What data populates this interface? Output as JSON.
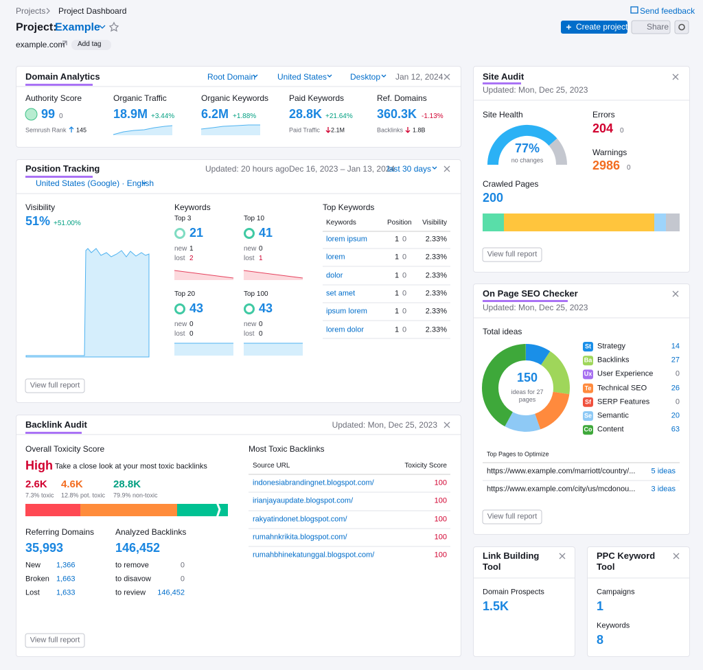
{
  "breadcrumbs": [
    "Projects",
    "Project Dashboard"
  ],
  "send_feedback": "Send feedback",
  "project": {
    "label": "Project:",
    "name": "Example",
    "domain": "example.com",
    "add_tag": "Add tag"
  },
  "buttons": {
    "create": "Create project",
    "share": "Share"
  },
  "domain_analytics": {
    "title": "Domain Analytics",
    "filters": [
      "Root Domain",
      "United States",
      "Desktop"
    ],
    "date": "Jan 12, 2024",
    "metrics": [
      {
        "label": "Authority Score",
        "value": "99",
        "change": "0",
        "sub_label": "Semrush Rank",
        "sub_value": "145"
      },
      {
        "label": "Organic Traffic",
        "value": "18.9M",
        "change": "+3.44%"
      },
      {
        "label": "Organic Keywords",
        "value": "6.2M",
        "change": "+1.88%"
      },
      {
        "label": "Paid Keywords",
        "value": "28.8K",
        "change": "+21.64%",
        "sub_label": "Paid Traffic",
        "sub_value": "2.1M"
      },
      {
        "label": "Ref. Domains",
        "value": "360.3K",
        "change": "-1.13%",
        "sub_label": "Backlinks",
        "sub_value": "1.8B"
      }
    ]
  },
  "position_tracking": {
    "title": "Position Tracking",
    "updated": "Updated: 20 hours ago",
    "range": "Dec 16, 2023 – Jan 13, 2024",
    "period": "last 30 days",
    "location": "United States (Google) · English",
    "visibility": {
      "label": "Visibility",
      "value": "51%",
      "change": "+51.00%"
    },
    "keywords": {
      "label": "Keywords",
      "new_label": "new",
      "lost_label": "lost",
      "groups": [
        {
          "label": "Top 3",
          "value": "21",
          "new": "1",
          "lost": "2"
        },
        {
          "label": "Top 10",
          "value": "41",
          "new": "0",
          "lost": "1"
        },
        {
          "label": "Top 20",
          "value": "43",
          "new": "0",
          "lost": "0"
        },
        {
          "label": "Top 100",
          "value": "43",
          "new": "0",
          "lost": "0"
        }
      ]
    },
    "top_keywords": {
      "title": "Top Keywords",
      "columns": [
        "Keywords",
        "Position",
        "Visibility"
      ],
      "rows": [
        [
          "lorem ipsum",
          "1",
          "0",
          "2.33%"
        ],
        [
          "lorem",
          "1",
          "0",
          "2.33%"
        ],
        [
          "dolor",
          "1",
          "0",
          "2.33%"
        ],
        [
          "set amet",
          "1",
          "0",
          "2.33%"
        ],
        [
          "ipsum lorem",
          "1",
          "0",
          "2.33%"
        ],
        [
          "lorem dolor",
          "1",
          "0",
          "2.33%"
        ]
      ]
    },
    "view_full_report": "View full report"
  },
  "backlink_audit": {
    "title": "Backlink Audit",
    "updated": "Updated: Mon, Dec 25, 2023",
    "toxicity": {
      "label": "Overall Toxicity Score",
      "level": "High",
      "note": "Take a close look at your most toxic backlinks",
      "counts": [
        {
          "value": "2.6K",
          "label": "7.3% toxic"
        },
        {
          "value": "4.6K",
          "label": "12.8% pot. toxic"
        },
        {
          "value": "28.8K",
          "label": "79.9% non-toxic"
        }
      ]
    },
    "referring_domains": {
      "label": "Referring Domains",
      "value": "35,993",
      "rows": [
        [
          "New",
          "1,366"
        ],
        [
          "Broken",
          "1,663"
        ],
        [
          "Lost",
          "1,633"
        ]
      ]
    },
    "analyzed_backlinks": {
      "label": "Analyzed Backlinks",
      "value": "146,452",
      "rows": [
        [
          "to remove",
          "0"
        ],
        [
          "to disavow",
          "0"
        ],
        [
          "to review",
          "146,452"
        ]
      ]
    },
    "most_toxic": {
      "title": "Most Toxic Backlinks",
      "columns": [
        "Source URL",
        "Toxicity Score"
      ],
      "rows": [
        [
          "indonesiabrandingnet.blogspot.com/",
          "100"
        ],
        [
          "irianjayaupdate.blogspot.com/",
          "100"
        ],
        [
          "rakyatindonet.blogspot.com/",
          "100"
        ],
        [
          "rumahnkrikita.blogspot.com/",
          "100"
        ],
        [
          "rumahbhinekatunggal.blogspot.com/",
          "100"
        ]
      ]
    },
    "view_full_report": "View full report"
  },
  "site_audit": {
    "title": "Site Audit",
    "updated": "Updated: Mon, Dec 25, 2023",
    "health": {
      "label": "Site Health",
      "value": "77%",
      "note": "no changes"
    },
    "errors": {
      "label": "Errors",
      "value": "204",
      "change": "0"
    },
    "warnings": {
      "label": "Warnings",
      "value": "2986",
      "change": "0"
    },
    "crawled": {
      "label": "Crawled Pages",
      "value": "200"
    },
    "view_full_report": "View full report"
  },
  "on_page_seo": {
    "title": "On Page SEO Checker",
    "updated": "Updated: Mon, Dec 25, 2023",
    "total": {
      "label": "Total ideas",
      "value": "150",
      "note": "ideas for 27 pages"
    },
    "ideas": [
      {
        "badge": "St",
        "name": "Strategy",
        "count": "14",
        "color": "#1a8fe8"
      },
      {
        "badge": "Ba",
        "name": "Backlinks",
        "count": "27",
        "color": "#9fd65a"
      },
      {
        "badge": "Ux",
        "name": "User Experience",
        "count": "0",
        "color": "#a66ff0"
      },
      {
        "badge": "Te",
        "name": "Technical SEO",
        "count": "26",
        "color": "#ff8a3d"
      },
      {
        "badge": "Sf",
        "name": "SERP Features",
        "count": "0",
        "color": "#f0503d"
      },
      {
        "badge": "Se",
        "name": "Semantic",
        "count": "20",
        "color": "#8ec9f5"
      },
      {
        "badge": "Co",
        "name": "Content",
        "count": "63",
        "color": "#3ea83a"
      }
    ],
    "top_pages": {
      "title": "Top Pages to Optimize",
      "rows": [
        [
          "https://www.example.com/marriott/country/...",
          "5 ideas"
        ],
        [
          "https://www.example.com/city/us/mcdonou...",
          "3 ideas"
        ]
      ]
    },
    "view_full_report": "View full report"
  },
  "link_building": {
    "title": "Link Building Tool",
    "label": "Domain Prospects",
    "value": "1.5K"
  },
  "ppc": {
    "title": "PPC Keyword Tool",
    "rows": [
      {
        "label": "Campaigns",
        "value": "1"
      },
      {
        "label": "Keywords",
        "value": "8"
      }
    ]
  }
}
